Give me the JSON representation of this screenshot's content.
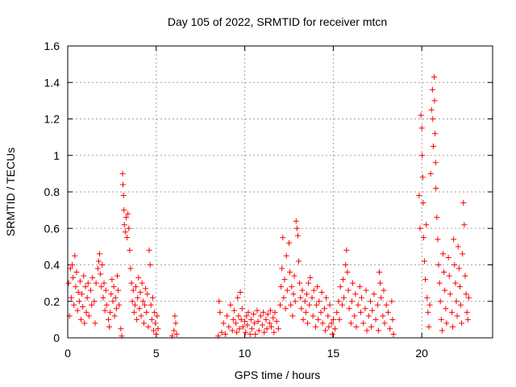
{
  "chart_data": {
    "type": "scatter",
    "title": "Day 105 of 2022, SRMTID for receiver mtcn",
    "xlabel": "GPS time / hours",
    "ylabel": "SRMTID / TECUs",
    "xlim": [
      0,
      24
    ],
    "ylim": [
      0,
      1.6
    ],
    "xticks": [
      "0",
      "5",
      "10",
      "15",
      "20"
    ],
    "xtick_values": [
      0,
      5,
      10,
      15,
      20
    ],
    "yticks": [
      "0",
      "0.2",
      "0.4",
      "0.6",
      "0.8",
      "1",
      "1.2",
      "1.4",
      "1.6"
    ],
    "ytick_values": [
      0,
      0.2,
      0.4,
      0.6,
      0.8,
      1.0,
      1.2,
      1.4,
      1.6
    ],
    "grid": true,
    "marker": "+",
    "color": "#ff0000",
    "series": [
      {
        "name": "SRMTID",
        "points": [
          [
            0.05,
            0.3
          ],
          [
            0.1,
            0.12
          ],
          [
            0.15,
            0.38
          ],
          [
            0.2,
            0.22
          ],
          [
            0.25,
            0.4
          ],
          [
            0.3,
            0.33
          ],
          [
            0.35,
            0.18
          ],
          [
            0.4,
            0.45
          ],
          [
            0.45,
            0.28
          ],
          [
            0.5,
            0.36
          ],
          [
            0.55,
            0.15
          ],
          [
            0.6,
            0.25
          ],
          [
            0.65,
            0.2
          ],
          [
            0.7,
            0.31
          ],
          [
            0.75,
            0.1
          ],
          [
            0.8,
            0.24
          ],
          [
            0.85,
            0.17
          ],
          [
            0.9,
            0.34
          ],
          [
            0.95,
            0.08
          ],
          [
            1.0,
            0.28
          ],
          [
            1.05,
            0.14
          ],
          [
            1.1,
            0.22
          ],
          [
            1.15,
            0.3
          ],
          [
            1.2,
            0.12
          ],
          [
            1.3,
            0.26
          ],
          [
            1.35,
            0.18
          ],
          [
            1.4,
            0.33
          ],
          [
            1.5,
            0.2
          ],
          [
            1.55,
            0.08
          ],
          [
            1.6,
            0.3
          ],
          [
            1.7,
            0.38
          ],
          [
            1.75,
            0.42
          ],
          [
            1.8,
            0.46
          ],
          [
            1.85,
            0.35
          ],
          [
            1.9,
            0.28
          ],
          [
            1.95,
            0.4
          ],
          [
            2.0,
            0.22
          ],
          [
            2.05,
            0.3
          ],
          [
            2.1,
            0.15
          ],
          [
            2.15,
            0.26
          ],
          [
            2.2,
            0.18
          ],
          [
            2.3,
            0.1
          ],
          [
            2.35,
            0.06
          ],
          [
            2.4,
            0.14
          ],
          [
            2.45,
            0.24
          ],
          [
            2.5,
            0.32
          ],
          [
            2.55,
            0.2
          ],
          [
            2.6,
            0.28
          ],
          [
            2.65,
            0.12
          ],
          [
            2.7,
            0.22
          ],
          [
            2.75,
            0.16
          ],
          [
            2.8,
            0.34
          ],
          [
            2.85,
            0.26
          ],
          [
            2.9,
            0.18
          ],
          [
            3.0,
            0.05
          ],
          [
            3.05,
            0.01
          ],
          [
            3.1,
            0.9
          ],
          [
            3.12,
            0.84
          ],
          [
            3.15,
            0.78
          ],
          [
            3.18,
            0.7
          ],
          [
            3.2,
            0.62
          ],
          [
            3.25,
            0.58
          ],
          [
            3.3,
            0.66
          ],
          [
            3.35,
            0.55
          ],
          [
            3.4,
            0.68
          ],
          [
            3.45,
            0.6
          ],
          [
            3.5,
            0.48
          ],
          [
            3.55,
            0.38
          ],
          [
            3.6,
            0.3
          ],
          [
            3.65,
            0.2
          ],
          [
            3.7,
            0.26
          ],
          [
            3.75,
            0.14
          ],
          [
            3.8,
            0.18
          ],
          [
            3.85,
            0.28
          ],
          [
            3.9,
            0.1
          ],
          [
            3.95,
            0.22
          ],
          [
            4.0,
            0.33
          ],
          [
            4.05,
            0.16
          ],
          [
            4.1,
            0.25
          ],
          [
            4.15,
            0.12
          ],
          [
            4.2,
            0.3
          ],
          [
            4.25,
            0.2
          ],
          [
            4.3,
            0.08
          ],
          [
            4.35,
            0.18
          ],
          [
            4.4,
            0.27
          ],
          [
            4.45,
            0.14
          ],
          [
            4.5,
            0.24
          ],
          [
            4.55,
            0.06
          ],
          [
            4.6,
            0.48
          ],
          [
            4.65,
            0.4
          ],
          [
            4.7,
            0.18
          ],
          [
            4.75,
            0.1
          ],
          [
            4.8,
            0.22
          ],
          [
            4.85,
            0.04
          ],
          [
            4.9,
            0.14
          ],
          [
            4.95,
            0.08
          ],
          [
            5.0,
            0.02
          ],
          [
            5.05,
            0.12
          ],
          [
            5.1,
            0.05
          ],
          [
            5.9,
            0.01
          ],
          [
            6.0,
            0.04
          ],
          [
            6.05,
            0.12
          ],
          [
            6.1,
            0.08
          ],
          [
            6.15,
            0.02
          ],
          [
            8.5,
            0.01
          ],
          [
            8.55,
            0.2
          ],
          [
            8.6,
            0.14
          ],
          [
            8.7,
            0.03
          ],
          [
            8.8,
            0.08
          ],
          [
            8.9,
            0.02
          ],
          [
            9.0,
            0.12
          ],
          [
            9.1,
            0.06
          ],
          [
            9.2,
            0.18
          ],
          [
            9.3,
            0.04
          ],
          [
            9.35,
            0.1
          ],
          [
            9.4,
            0.15
          ],
          [
            9.5,
            0.08
          ],
          [
            9.55,
            0.03
          ],
          [
            9.6,
            0.22
          ],
          [
            9.65,
            0.12
          ],
          [
            9.7,
            0.05
          ],
          [
            9.75,
            0.25
          ],
          [
            9.8,
            0.1
          ],
          [
            9.85,
            0.16
          ],
          [
            9.9,
            0.06
          ],
          [
            10.0,
            0.09
          ],
          [
            10.05,
            0.03
          ],
          [
            10.1,
            0.12
          ],
          [
            10.15,
            0.07
          ],
          [
            10.2,
            0.14
          ],
          [
            10.3,
            0.02
          ],
          [
            10.35,
            0.1
          ],
          [
            10.4,
            0.05
          ],
          [
            10.5,
            0.13
          ],
          [
            10.55,
            0.08
          ],
          [
            10.6,
            0.02
          ],
          [
            10.7,
            0.15
          ],
          [
            10.75,
            0.09
          ],
          [
            10.8,
            0.04
          ],
          [
            10.9,
            0.12
          ],
          [
            11.0,
            0.07
          ],
          [
            11.05,
            0.14
          ],
          [
            11.1,
            0.03
          ],
          [
            11.2,
            0.1
          ],
          [
            11.25,
            0.05
          ],
          [
            11.3,
            0.13
          ],
          [
            11.4,
            0.08
          ],
          [
            11.45,
            0.15
          ],
          [
            11.5,
            0.06
          ],
          [
            11.6,
            0.11
          ],
          [
            11.65,
            0.03
          ],
          [
            11.7,
            0.14
          ],
          [
            11.8,
            0.09
          ],
          [
            11.9,
            0.05
          ],
          [
            12.0,
            0.18
          ],
          [
            12.05,
            0.28
          ],
          [
            12.1,
            0.38
          ],
          [
            12.15,
            0.55
          ],
          [
            12.2,
            0.22
          ],
          [
            12.25,
            0.32
          ],
          [
            12.3,
            0.16
          ],
          [
            12.35,
            0.45
          ],
          [
            12.4,
            0.26
          ],
          [
            12.5,
            0.52
          ],
          [
            12.55,
            0.36
          ],
          [
            12.6,
            0.18
          ],
          [
            12.65,
            0.28
          ],
          [
            12.7,
            0.12
          ],
          [
            12.75,
            0.24
          ],
          [
            12.8,
            0.34
          ],
          [
            12.85,
            0.2
          ],
          [
            12.9,
            0.64
          ],
          [
            12.95,
            0.6
          ],
          [
            13.0,
            0.56
          ],
          [
            13.05,
            0.42
          ],
          [
            13.1,
            0.3
          ],
          [
            13.15,
            0.22
          ],
          [
            13.2,
            0.16
          ],
          [
            13.25,
            0.26
          ],
          [
            13.3,
            0.1
          ],
          [
            13.4,
            0.2
          ],
          [
            13.45,
            0.14
          ],
          [
            13.5,
            0.24
          ],
          [
            13.55,
            0.08
          ],
          [
            13.6,
            0.3
          ],
          [
            13.65,
            0.18
          ],
          [
            13.7,
            0.33
          ],
          [
            13.8,
            0.22
          ],
          [
            13.85,
            0.12
          ],
          [
            13.9,
            0.26
          ],
          [
            14.0,
            0.06
          ],
          [
            14.05,
            0.18
          ],
          [
            14.1,
            0.28
          ],
          [
            14.15,
            0.1
          ],
          [
            14.2,
            0.2
          ],
          [
            14.3,
            0.14
          ],
          [
            14.35,
            0.25
          ],
          [
            14.4,
            0.08
          ],
          [
            14.5,
            0.16
          ],
          [
            14.55,
            0.04
          ],
          [
            14.6,
            0.22
          ],
          [
            14.7,
            0.12
          ],
          [
            14.75,
            0.06
          ],
          [
            14.8,
            0.18
          ],
          [
            14.9,
            0.08
          ],
          [
            14.95,
            0.02
          ],
          [
            15.0,
            0.1
          ],
          [
            15.1,
            0.05
          ],
          [
            15.2,
            0.14
          ],
          [
            15.3,
            0.2
          ],
          [
            15.35,
            0.1
          ],
          [
            15.4,
            0.28
          ],
          [
            15.5,
            0.18
          ],
          [
            15.55,
            0.32
          ],
          [
            15.6,
            0.22
          ],
          [
            15.7,
            0.4
          ],
          [
            15.75,
            0.48
          ],
          [
            15.8,
            0.36
          ],
          [
            15.85,
            0.26
          ],
          [
            15.9,
            0.16
          ],
          [
            16.0,
            0.08
          ],
          [
            16.05,
            0.2
          ],
          [
            16.1,
            0.3
          ],
          [
            16.2,
            0.12
          ],
          [
            16.25,
            0.24
          ],
          [
            16.3,
            0.06
          ],
          [
            16.4,
            0.18
          ],
          [
            16.5,
            0.28
          ],
          [
            16.55,
            0.14
          ],
          [
            16.6,
            0.22
          ],
          [
            16.7,
            0.08
          ],
          [
            16.8,
            0.16
          ],
          [
            16.85,
            0.26
          ],
          [
            16.9,
            0.04
          ],
          [
            17.0,
            0.12
          ],
          [
            17.1,
            0.2
          ],
          [
            17.15,
            0.06
          ],
          [
            17.2,
            0.15
          ],
          [
            17.3,
            0.24
          ],
          [
            17.4,
            0.1
          ],
          [
            17.5,
            0.18
          ],
          [
            17.55,
            0.04
          ],
          [
            17.6,
            0.36
          ],
          [
            17.65,
            0.3
          ],
          [
            17.7,
            0.22
          ],
          [
            17.8,
            0.12
          ],
          [
            17.85,
            0.26
          ],
          [
            17.9,
            0.08
          ],
          [
            18.0,
            0.18
          ],
          [
            18.1,
            0.14
          ],
          [
            18.2,
            0.05
          ],
          [
            18.3,
            0.2
          ],
          [
            18.35,
            0.1
          ],
          [
            18.4,
            0.02
          ],
          [
            19.85,
            0.78
          ],
          [
            19.9,
            0.6
          ],
          [
            19.95,
            1.22
          ],
          [
            20.0,
            1.15
          ],
          [
            20.02,
            1.0
          ],
          [
            20.05,
            0.88
          ],
          [
            20.08,
            0.74
          ],
          [
            20.1,
            0.55
          ],
          [
            20.15,
            0.42
          ],
          [
            20.2,
            0.32
          ],
          [
            20.25,
            0.62
          ],
          [
            20.3,
            0.22
          ],
          [
            20.35,
            0.14
          ],
          [
            20.4,
            0.06
          ],
          [
            20.45,
            0.18
          ],
          [
            20.5,
            0.9
          ],
          [
            20.55,
            1.25
          ],
          [
            20.6,
            1.36
          ],
          [
            20.62,
            1.2
          ],
          [
            20.65,
            1.05
          ],
          [
            20.7,
            1.43
          ],
          [
            20.72,
            1.3
          ],
          [
            20.75,
            1.12
          ],
          [
            20.78,
            0.96
          ],
          [
            20.8,
            0.82
          ],
          [
            20.85,
            0.66
          ],
          [
            20.9,
            0.54
          ],
          [
            20.95,
            0.4
          ],
          [
            21.0,
            0.3
          ],
          [
            21.05,
            0.2
          ],
          [
            21.1,
            0.1
          ],
          [
            21.15,
            0.04
          ],
          [
            21.2,
            0.46
          ],
          [
            21.25,
            0.36
          ],
          [
            21.3,
            0.26
          ],
          [
            21.35,
            0.16
          ],
          [
            21.4,
            0.08
          ],
          [
            21.5,
            0.44
          ],
          [
            21.55,
            0.34
          ],
          [
            21.6,
            0.24
          ],
          [
            21.7,
            0.14
          ],
          [
            21.75,
            0.06
          ],
          [
            21.8,
            0.54
          ],
          [
            21.85,
            0.4
          ],
          [
            21.9,
            0.3
          ],
          [
            21.95,
            0.2
          ],
          [
            22.0,
            0.12
          ],
          [
            22.05,
            0.5
          ],
          [
            22.1,
            0.38
          ],
          [
            22.15,
            0.28
          ],
          [
            22.2,
            0.18
          ],
          [
            22.25,
            0.08
          ],
          [
            22.3,
            0.46
          ],
          [
            22.35,
            0.74
          ],
          [
            22.4,
            0.62
          ],
          [
            22.45,
            0.34
          ],
          [
            22.5,
            0.24
          ],
          [
            22.55,
            0.14
          ],
          [
            22.6,
            0.1
          ],
          [
            22.65,
            0.22
          ]
        ]
      }
    ]
  }
}
